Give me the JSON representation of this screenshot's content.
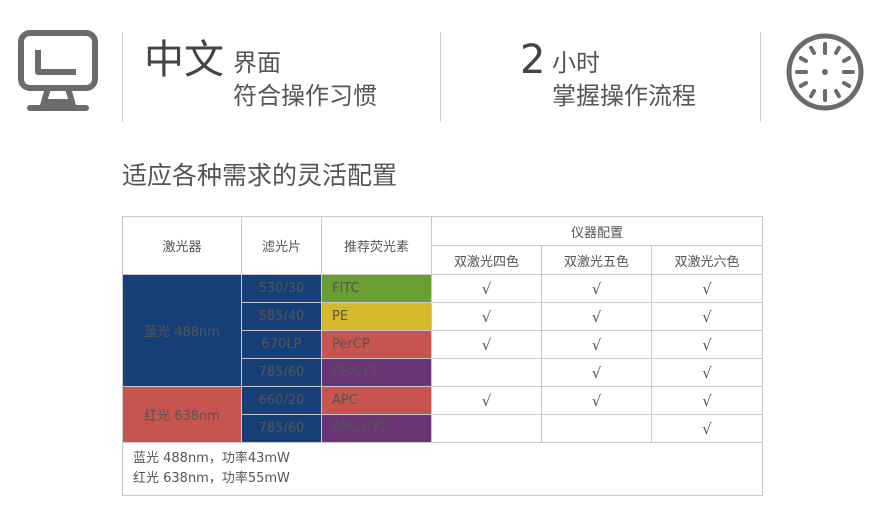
{
  "header": {
    "feature1": {
      "big": "中文",
      "line1": "界面",
      "line2": "符合操作习惯"
    },
    "feature2": {
      "big": "2",
      "line1": "小时",
      "line2": "掌握操作流程"
    },
    "icons": {
      "left": "computer-monitor-icon",
      "right": "clock-dial-icon"
    }
  },
  "section_title": "适应各种需求的灵活配置",
  "table": {
    "headers": {
      "laser": "激光器",
      "filter": "滤光片",
      "fluor": "推荐荧光素",
      "config": "仪器配置",
      "configs": [
        "双激光四色",
        "双激光五色",
        "双激光六色"
      ]
    },
    "lasers": [
      {
        "name": "蓝光 488nm",
        "color": "#173f77"
      },
      {
        "name": "红光 638nm",
        "color": "#c85450"
      }
    ],
    "check_mark": "√",
    "rows": [
      {
        "filter": "530/30",
        "fluor": "FITC",
        "fluor_color": "#6a9e33",
        "c4": "√",
        "c5": "√",
        "c6": "√"
      },
      {
        "filter": "585/40",
        "fluor": "PE",
        "fluor_color": "#d6b92a",
        "c4": "√",
        "c5": "√",
        "c6": "√"
      },
      {
        "filter": "670LP",
        "fluor": "PerCP",
        "fluor_color": "#c85450",
        "c4": "√",
        "c5": "√",
        "c6": "√"
      },
      {
        "filter": "785/60",
        "fluor": "PE-CY7",
        "fluor_color": "#6a3475",
        "c4": "",
        "c5": "√",
        "c6": "√"
      },
      {
        "filter": "660/20",
        "fluor": "APC",
        "fluor_color": "#c85450",
        "c4": "√",
        "c5": "√",
        "c6": "√"
      },
      {
        "filter": "785/60",
        "fluor": "APC-CY7",
        "fluor_color": "#6a3475",
        "c4": "",
        "c5": "",
        "c6": "√"
      }
    ],
    "notes": [
      "蓝光 488nm，功率43mW",
      "红光 638nm，功率55mW"
    ]
  }
}
